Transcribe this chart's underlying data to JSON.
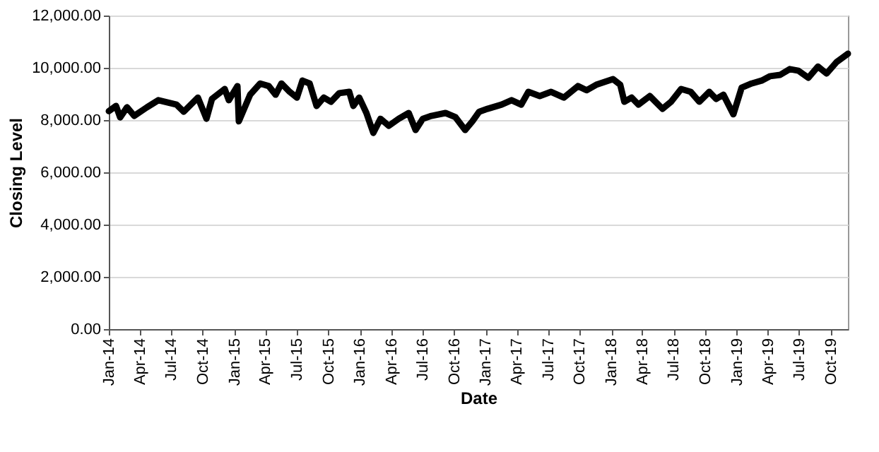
{
  "chart_data": {
    "type": "line",
    "xlabel": "Date",
    "ylabel": "Closing Level",
    "grid": "y",
    "marker": "none",
    "line_style": "solid",
    "xlim": [
      "2014-01-01",
      "2019-11-20"
    ],
    "xticks": [
      {
        "value": "2014-01-01",
        "label": "Jan-14"
      },
      {
        "value": "2014-04-01",
        "label": "Apr-14"
      },
      {
        "value": "2014-07-01",
        "label": "Jul-14"
      },
      {
        "value": "2014-10-01",
        "label": "Oct-14"
      },
      {
        "value": "2015-01-01",
        "label": "Jan-15"
      },
      {
        "value": "2015-04-01",
        "label": "Apr-15"
      },
      {
        "value": "2015-07-01",
        "label": "Jul-15"
      },
      {
        "value": "2015-10-01",
        "label": "Oct-15"
      },
      {
        "value": "2016-01-01",
        "label": "Jan-16"
      },
      {
        "value": "2016-04-01",
        "label": "Apr-16"
      },
      {
        "value": "2016-07-01",
        "label": "Jul-16"
      },
      {
        "value": "2016-10-01",
        "label": "Oct-16"
      },
      {
        "value": "2017-01-01",
        "label": "Jan-17"
      },
      {
        "value": "2017-04-01",
        "label": "Apr-17"
      },
      {
        "value": "2017-07-01",
        "label": "Jul-17"
      },
      {
        "value": "2017-10-01",
        "label": "Oct-17"
      },
      {
        "value": "2018-01-01",
        "label": "Jan-18"
      },
      {
        "value": "2018-04-01",
        "label": "Apr-18"
      },
      {
        "value": "2018-07-01",
        "label": "Jul-18"
      },
      {
        "value": "2018-10-01",
        "label": "Oct-18"
      },
      {
        "value": "2019-01-01",
        "label": "Jan-19"
      },
      {
        "value": "2019-04-01",
        "label": "Apr-19"
      },
      {
        "value": "2019-07-01",
        "label": "Jul-19"
      },
      {
        "value": "2019-10-01",
        "label": "Oct-19"
      }
    ],
    "ylim": [
      0,
      12000
    ],
    "yticks": [
      {
        "value": 0,
        "label": "0.00"
      },
      {
        "value": 2000,
        "label": "2,000.00"
      },
      {
        "value": 4000,
        "label": "4,000.00"
      },
      {
        "value": 6000,
        "label": "6,000.00"
      },
      {
        "value": 8000,
        "label": "8,000.00"
      },
      {
        "value": 10000,
        "label": "10,000.00"
      },
      {
        "value": 12000,
        "label": "12,000.00"
      }
    ],
    "x": [
      "2014-01-01",
      "2014-01-22",
      "2014-02-03",
      "2014-02-23",
      "2014-03-16",
      "2014-04-22",
      "2014-05-25",
      "2014-07-17",
      "2014-08-07",
      "2014-09-17",
      "2014-10-12",
      "2014-10-28",
      "2014-12-04",
      "2014-12-16",
      "2015-01-10",
      "2015-01-14",
      "2015-02-16",
      "2015-03-17",
      "2015-04-11",
      "2015-05-01",
      "2015-05-18",
      "2015-06-11",
      "2015-07-02",
      "2015-07-18",
      "2015-08-08",
      "2015-08-28",
      "2015-09-18",
      "2015-10-09",
      "2015-11-02",
      "2015-12-01",
      "2015-12-13",
      "2015-12-30",
      "2016-01-20",
      "2016-02-09",
      "2016-03-01",
      "2016-03-25",
      "2016-04-23",
      "2016-05-22",
      "2016-06-11",
      "2016-07-02",
      "2016-07-27",
      "2016-09-06",
      "2016-10-05",
      "2016-11-02",
      "2016-11-23",
      "2016-12-13",
      "2017-01-06",
      "2017-02-16",
      "2017-03-17",
      "2017-04-14",
      "2017-05-05",
      "2017-06-07",
      "2017-07-10",
      "2017-08-16",
      "2017-09-26",
      "2017-10-21",
      "2017-11-18",
      "2018-01-06",
      "2018-01-27",
      "2018-02-08",
      "2018-03-01",
      "2018-03-21",
      "2018-04-23",
      "2018-05-30",
      "2018-06-24",
      "2018-07-23",
      "2018-08-20",
      "2018-09-14",
      "2018-10-13",
      "2018-11-02",
      "2018-11-23",
      "2018-12-22",
      "2019-01-15",
      "2019-02-13",
      "2019-03-14",
      "2019-04-08",
      "2019-05-07",
      "2019-06-04",
      "2019-06-29",
      "2019-07-28",
      "2019-08-25",
      "2019-09-19",
      "2019-10-18",
      "2019-11-20"
    ],
    "series": [
      {
        "color": "#000000",
        "values": [
          8340,
          8540,
          8100,
          8490,
          8160,
          8490,
          8760,
          8590,
          8320,
          8860,
          8050,
          8810,
          9190,
          8760,
          9300,
          7950,
          8970,
          9400,
          9300,
          8970,
          9400,
          9080,
          8860,
          9510,
          9400,
          8540,
          8860,
          8700,
          9030,
          9080,
          8540,
          8860,
          8270,
          7510,
          8050,
          7780,
          8050,
          8270,
          7620,
          8050,
          8160,
          8270,
          8110,
          7620,
          7950,
          8320,
          8430,
          8590,
          8760,
          8590,
          9080,
          8920,
          9080,
          8860,
          9300,
          9140,
          9350,
          9570,
          9350,
          8700,
          8860,
          8590,
          8920,
          8430,
          8700,
          9190,
          9080,
          8700,
          9080,
          8810,
          8970,
          8220,
          9240,
          9400,
          9510,
          9680,
          9730,
          9950,
          9890,
          9620,
          10050,
          9780,
          10220,
          10540
        ]
      }
    ]
  }
}
